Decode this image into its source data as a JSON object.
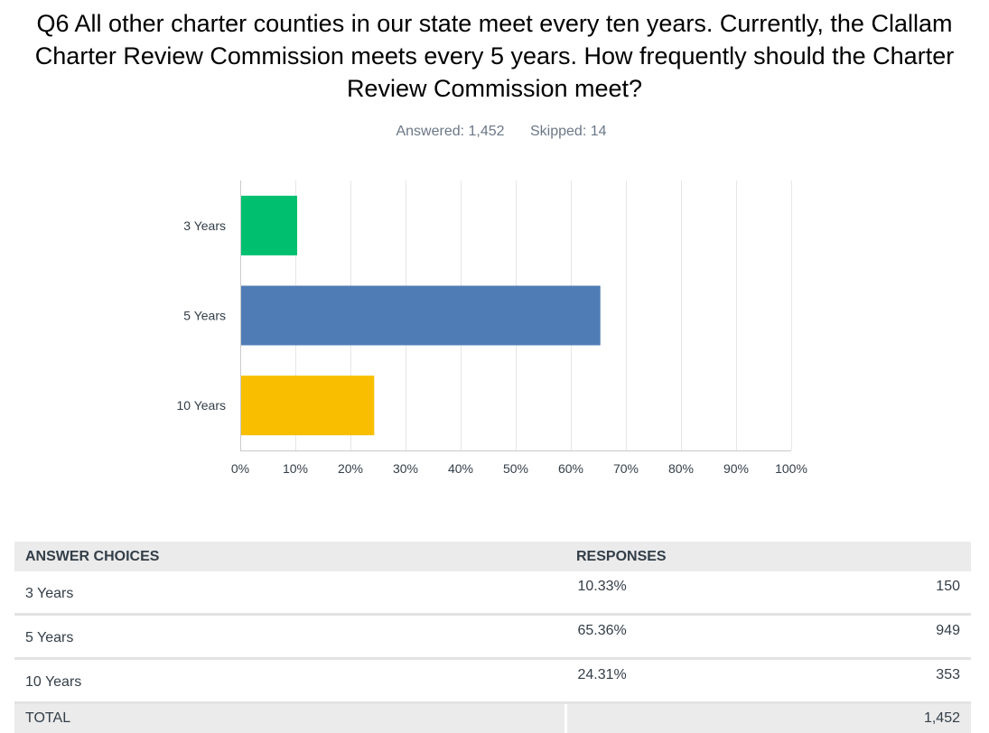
{
  "question": {
    "title": "Q6 All other charter counties in our state meet every ten years. Currently, the Clallam Charter Review Commission meets every 5 years. How frequently should the Charter Review Commission meet?",
    "answered": "Answered: 1,452",
    "skipped": "Skipped: 14"
  },
  "chart_data": {
    "type": "bar",
    "orientation": "horizontal",
    "categories": [
      "3 Years",
      "5 Years",
      "10 Years"
    ],
    "values": [
      10.33,
      65.36,
      24.31
    ],
    "colors": [
      "#00bf6f",
      "#507cb6",
      "#f9be00"
    ],
    "xlim": [
      0,
      100
    ],
    "xticks": [
      "0%",
      "10%",
      "20%",
      "30%",
      "40%",
      "50%",
      "60%",
      "70%",
      "80%",
      "90%",
      "100%"
    ],
    "grid": true
  },
  "table": {
    "headers": [
      "ANSWER CHOICES",
      "RESPONSES"
    ],
    "rows": [
      {
        "choice": "3 Years",
        "pct": "10.33%",
        "count": "150"
      },
      {
        "choice": "5 Years",
        "pct": "65.36%",
        "count": "949"
      },
      {
        "choice": "10 Years",
        "pct": "24.31%",
        "count": "353"
      }
    ],
    "total_label": "TOTAL",
    "total_count": "1,452"
  }
}
